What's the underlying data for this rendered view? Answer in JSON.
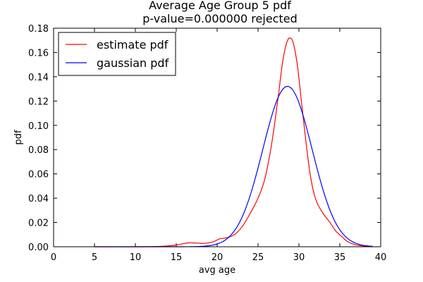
{
  "chart_data": {
    "type": "line",
    "title": [
      "Average Age Group 5 pdf",
      "p-value=0.000000  rejected"
    ],
    "xlabel": "avg age",
    "ylabel": "pdf",
    "xlim": [
      0,
      40
    ],
    "ylim": [
      0,
      0.18
    ],
    "xticks": [
      0,
      5,
      10,
      15,
      20,
      25,
      30,
      35,
      40
    ],
    "yticks": [
      0.0,
      0.02,
      0.04,
      0.06,
      0.08,
      0.1,
      0.12,
      0.14,
      0.16,
      0.18
    ],
    "xtick_labels": [
      "0",
      "5",
      "10",
      "15",
      "20",
      "25",
      "30",
      "35",
      "40"
    ],
    "ytick_labels": [
      "0.00",
      "0.02",
      "0.04",
      "0.06",
      "0.08",
      "0.10",
      "0.12",
      "0.14",
      "0.16",
      "0.18"
    ],
    "grid": false,
    "legend_position": "top-left",
    "series": [
      {
        "name": "estimate pdf",
        "color": "#ff0000",
        "points": [
          [
            5,
            0.0
          ],
          [
            10,
            0.0
          ],
          [
            13,
            0.0003
          ],
          [
            14.5,
            0.001
          ],
          [
            15.5,
            0.002
          ],
          [
            16.5,
            0.0032
          ],
          [
            17.5,
            0.003
          ],
          [
            18.5,
            0.0028
          ],
          [
            19.5,
            0.004
          ],
          [
            20.3,
            0.0065
          ],
          [
            21,
            0.0072
          ],
          [
            22,
            0.0095
          ],
          [
            23,
            0.016
          ],
          [
            24,
            0.027
          ],
          [
            25,
            0.04
          ],
          [
            25.8,
            0.055
          ],
          [
            26.5,
            0.078
          ],
          [
            27,
            0.1
          ],
          [
            27.5,
            0.125
          ],
          [
            28,
            0.152
          ],
          [
            28.5,
            0.168
          ],
          [
            28.9,
            0.172
          ],
          [
            29.3,
            0.168
          ],
          [
            29.8,
            0.15
          ],
          [
            30.3,
            0.12
          ],
          [
            30.8,
            0.09
          ],
          [
            31.3,
            0.063
          ],
          [
            31.8,
            0.045
          ],
          [
            32.3,
            0.035
          ],
          [
            33,
            0.027
          ],
          [
            33.8,
            0.02
          ],
          [
            34.5,
            0.013
          ],
          [
            35.3,
            0.008
          ],
          [
            36,
            0.004
          ],
          [
            37,
            0.0015
          ],
          [
            38,
            0.0005
          ],
          [
            39,
            0.0
          ]
        ]
      },
      {
        "name": "gaussian pdf",
        "color": "#0000ff",
        "mean": 28.6,
        "sd": 3.02,
        "range": [
          5,
          39
        ]
      }
    ]
  }
}
